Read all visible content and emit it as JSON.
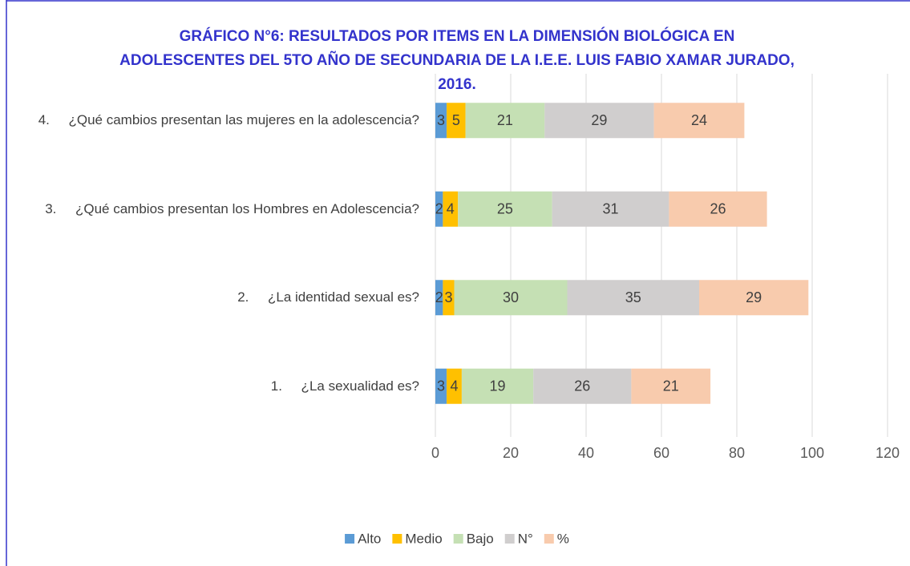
{
  "chart_data": {
    "type": "stacked_barh",
    "title": "GRÁFICO N°6: RESULTADOS POR ITEMS EN LA DIMENSIÓN BIOLÓGICA EN ADOLESCENTES DEL 5TO AÑO DE SECUNDARIA DE LA I.E.E. LUIS FABIO XAMAR JURADO, 2016.",
    "categories": [
      "1.     ¿La sexualidad es?",
      "2.     ¿La identidad sexual es?",
      "3.     ¿Qué cambios presentan los Hombres en Adolescencia?",
      "4.     ¿Qué cambios presentan las mujeres en la adolescencia?"
    ],
    "series": [
      {
        "name": "Alto",
        "color": "#5b9bd5",
        "values": [
          3,
          2,
          2,
          3
        ]
      },
      {
        "name": "Medio",
        "color": "#ffc000",
        "values": [
          4,
          3,
          4,
          5
        ]
      },
      {
        "name": "Bajo",
        "color": "#c5e0b4",
        "values": [
          19,
          30,
          25,
          21
        ]
      },
      {
        "name": "N°",
        "color": "#d0cece",
        "values": [
          26,
          35,
          31,
          29
        ]
      },
      {
        "name": "%",
        "color": "#f8cbad",
        "values": [
          21,
          29,
          26,
          24
        ]
      }
    ],
    "xlim": [
      0,
      120
    ],
    "xticks": [
      0,
      20,
      40,
      60,
      80,
      100,
      120
    ],
    "grid": true,
    "legend": "bottom"
  }
}
